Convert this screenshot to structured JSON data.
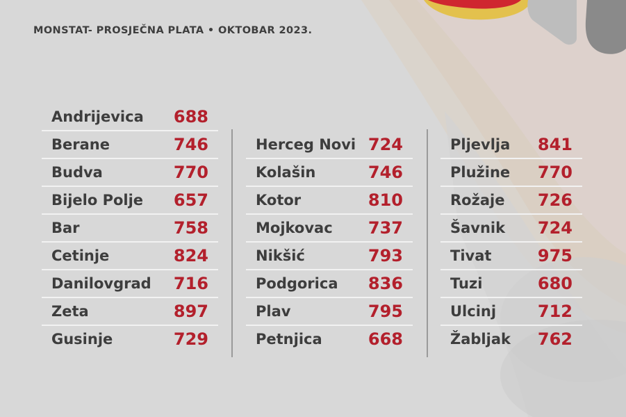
{
  "header": {
    "title": "MONSTAT- PROSJEČNA PLATA  •  OKTOBAR 2023."
  },
  "colors": {
    "value": "#b3202c",
    "name": "#3d3d3d",
    "background": "#d9d9d9"
  },
  "columns": [
    {
      "rows": [
        {
          "name": "Andrijevica",
          "value": "688"
        },
        {
          "name": "Berane",
          "value": "746"
        },
        {
          "name": "Budva",
          "value": "770"
        },
        {
          "name": "Bijelo Polje",
          "value": "657"
        },
        {
          "name": "Bar",
          "value": "758"
        },
        {
          "name": "Cetinje",
          "value": "824"
        },
        {
          "name": "Danilovgrad",
          "value": "716"
        },
        {
          "name": "Zeta",
          "value": "897"
        },
        {
          "name": "Gusinje",
          "value": "729"
        }
      ]
    },
    {
      "rows": [
        {
          "name": "Herceg Novi",
          "value": "724"
        },
        {
          "name": "Kolašin",
          "value": "746"
        },
        {
          "name": "Kotor",
          "value": "810"
        },
        {
          "name": "Mojkovac",
          "value": "737"
        },
        {
          "name": "Nikšić",
          "value": "793"
        },
        {
          "name": "Podgorica",
          "value": "836"
        },
        {
          "name": "Plav",
          "value": "795"
        },
        {
          "name": "Petnjica",
          "value": "668"
        }
      ]
    },
    {
      "rows": [
        {
          "name": "Pljevlja",
          "value": "841"
        },
        {
          "name": "Plužine",
          "value": "770"
        },
        {
          "name": "Rožaje",
          "value": "726"
        },
        {
          "name": "Šavnik",
          "value": "724"
        },
        {
          "name": "Tivat",
          "value": "975"
        },
        {
          "name": "Tuzi",
          "value": "680"
        },
        {
          "name": "Ulcinj",
          "value": "712"
        },
        {
          "name": "Žabljak",
          "value": "762"
        }
      ]
    }
  ]
}
